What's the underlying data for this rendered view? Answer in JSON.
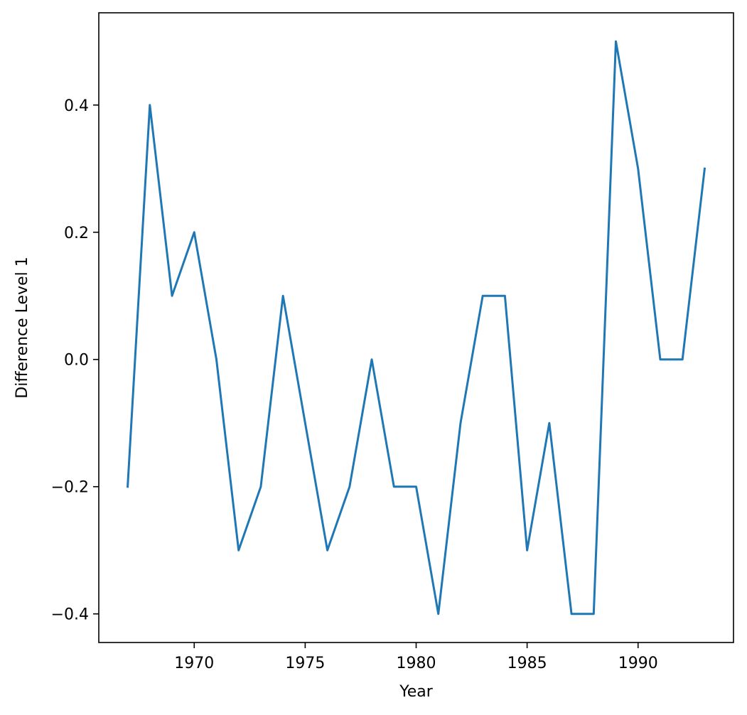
{
  "chart_data": {
    "type": "line",
    "title": "",
    "xlabel": "Year",
    "ylabel": "Difference Level 1",
    "xlim": [
      1965.7,
      1994.3
    ],
    "ylim": [
      -0.445,
      0.545
    ],
    "xticks": [
      1970,
      1975,
      1980,
      1985,
      1990
    ],
    "yticks": [
      -0.4,
      -0.2,
      0.0,
      0.2,
      0.4
    ],
    "ytick_labels": [
      "−0.4",
      "−0.2",
      "0.0",
      "0.2",
      "0.4"
    ],
    "grid": false,
    "legend": "none",
    "series": [
      {
        "color": "#1f77b4",
        "x": [
          1967,
          1968,
          1969,
          1970,
          1971,
          1972,
          1973,
          1974,
          1975,
          1976,
          1977,
          1978,
          1979,
          1980,
          1981,
          1982,
          1983,
          1984,
          1985,
          1986,
          1987,
          1988,
          1989,
          1990,
          1991,
          1992,
          1993
        ],
        "y": [
          -0.2,
          0.4,
          0.1,
          0.2,
          0.0,
          -0.3,
          -0.2,
          0.1,
          -0.1,
          -0.3,
          -0.2,
          0.0,
          -0.2,
          -0.2,
          -0.4,
          -0.1,
          0.1,
          0.1,
          -0.3,
          -0.1,
          -0.4,
          -0.4,
          0.5,
          0.3,
          0.0,
          0.0,
          0.3
        ]
      }
    ]
  }
}
